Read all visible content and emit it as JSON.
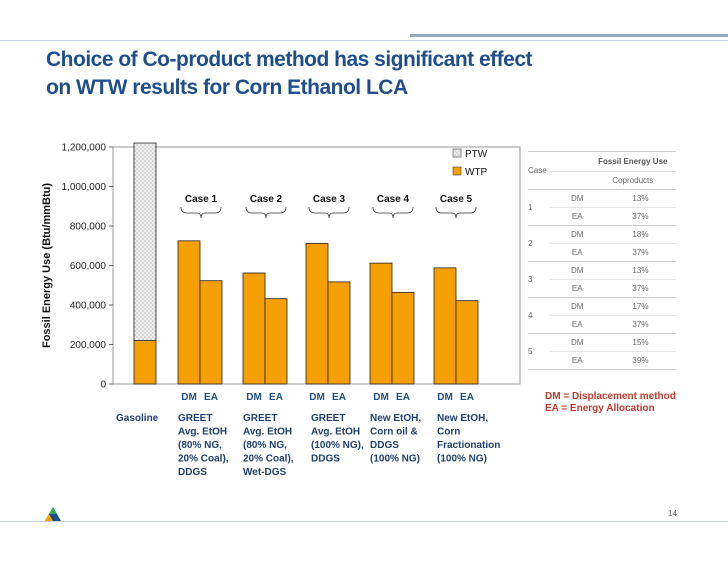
{
  "title_lines": [
    "Choice of Co-product method has significant effect",
    "on WTW results for Corn Ethanol LCA"
  ],
  "chart_data": {
    "type": "bar",
    "ylabel": "Fossil Energy Use (Btu/mmBtu)",
    "ylim": [
      0,
      1200000
    ],
    "yticks": [
      "0",
      "200,000",
      "400,000",
      "600,000",
      "800,000",
      "1,000,000",
      "1,200,000"
    ],
    "ytick_values": [
      0,
      200000,
      400000,
      600000,
      800000,
      1000000,
      1200000
    ],
    "stacked": true,
    "legend": [
      "PTW",
      "WTP"
    ],
    "legend_position": "top-right",
    "colors": {
      "PTW": "#e8e8e8",
      "WTP": "#f5a000"
    },
    "bars": [
      {
        "group": "Gasoline",
        "label": "",
        "WTP": 220000,
        "PTW": 1000000
      },
      {
        "group": "Case 1",
        "label": "DM",
        "WTP": 725000,
        "PTW": 0
      },
      {
        "group": "Case 1",
        "label": "EA",
        "WTP": 523000,
        "PTW": 0
      },
      {
        "group": "Case 2",
        "label": "DM",
        "WTP": 562000,
        "PTW": 0
      },
      {
        "group": "Case 2",
        "label": "EA",
        "WTP": 432000,
        "PTW": 0
      },
      {
        "group": "Case 3",
        "label": "DM",
        "WTP": 712000,
        "PTW": 0
      },
      {
        "group": "Case 3",
        "label": "EA",
        "WTP": 517000,
        "PTW": 0
      },
      {
        "group": "Case 4",
        "label": "DM",
        "WTP": 612000,
        "PTW": 0
      },
      {
        "group": "Case 4",
        "label": "EA",
        "WTP": 464000,
        "PTW": 0
      },
      {
        "group": "Case 5",
        "label": "DM",
        "WTP": 588000,
        "PTW": 0
      },
      {
        "group": "Case 5",
        "label": "EA",
        "WTP": 422000,
        "PTW": 0
      }
    ],
    "case_labels": [
      "Case 1",
      "Case 2",
      "Case 3",
      "Case 4",
      "Case 5"
    ],
    "category_captions": [
      [
        "Gasoline"
      ],
      [
        "GREET",
        "Avg. EtOH",
        "(80% NG,",
        "20% Coal),",
        "DDGS"
      ],
      [
        "GREET",
        "Avg. EtOH",
        "(80% NG,",
        "20% Coal),",
        "Wet-DGS"
      ],
      [
        "GREET",
        "Avg. EtOH",
        "(100% NG),",
        "DDGS"
      ],
      [
        "New EtOH,",
        "Corn oil &",
        "DDGS",
        "(100% NG)"
      ],
      [
        "New EtOH,",
        "Corn",
        "Fractionation",
        "(100% NG)"
      ]
    ]
  },
  "table": {
    "col_case": "Case",
    "col_header": "Fossil Energy Use",
    "sub_header": "Coproducts",
    "rows": [
      {
        "case": "1",
        "method": "DM",
        "value": "13%"
      },
      {
        "case": "",
        "method": "EA",
        "value": "37%"
      },
      {
        "case": "2",
        "method": "DM",
        "value": "18%"
      },
      {
        "case": "",
        "method": "EA",
        "value": "37%"
      },
      {
        "case": "3",
        "method": "DM",
        "value": "13%"
      },
      {
        "case": "",
        "method": "EA",
        "value": "37%"
      },
      {
        "case": "4",
        "method": "DM",
        "value": "17%"
      },
      {
        "case": "",
        "method": "EA",
        "value": "37%"
      },
      {
        "case": "5",
        "method": "DM",
        "value": "15%"
      },
      {
        "case": "",
        "method": "EA",
        "value": "39%"
      }
    ]
  },
  "notes": [
    "DM = Displacement method",
    "EA = Energy Allocation"
  ],
  "page_number": "14"
}
